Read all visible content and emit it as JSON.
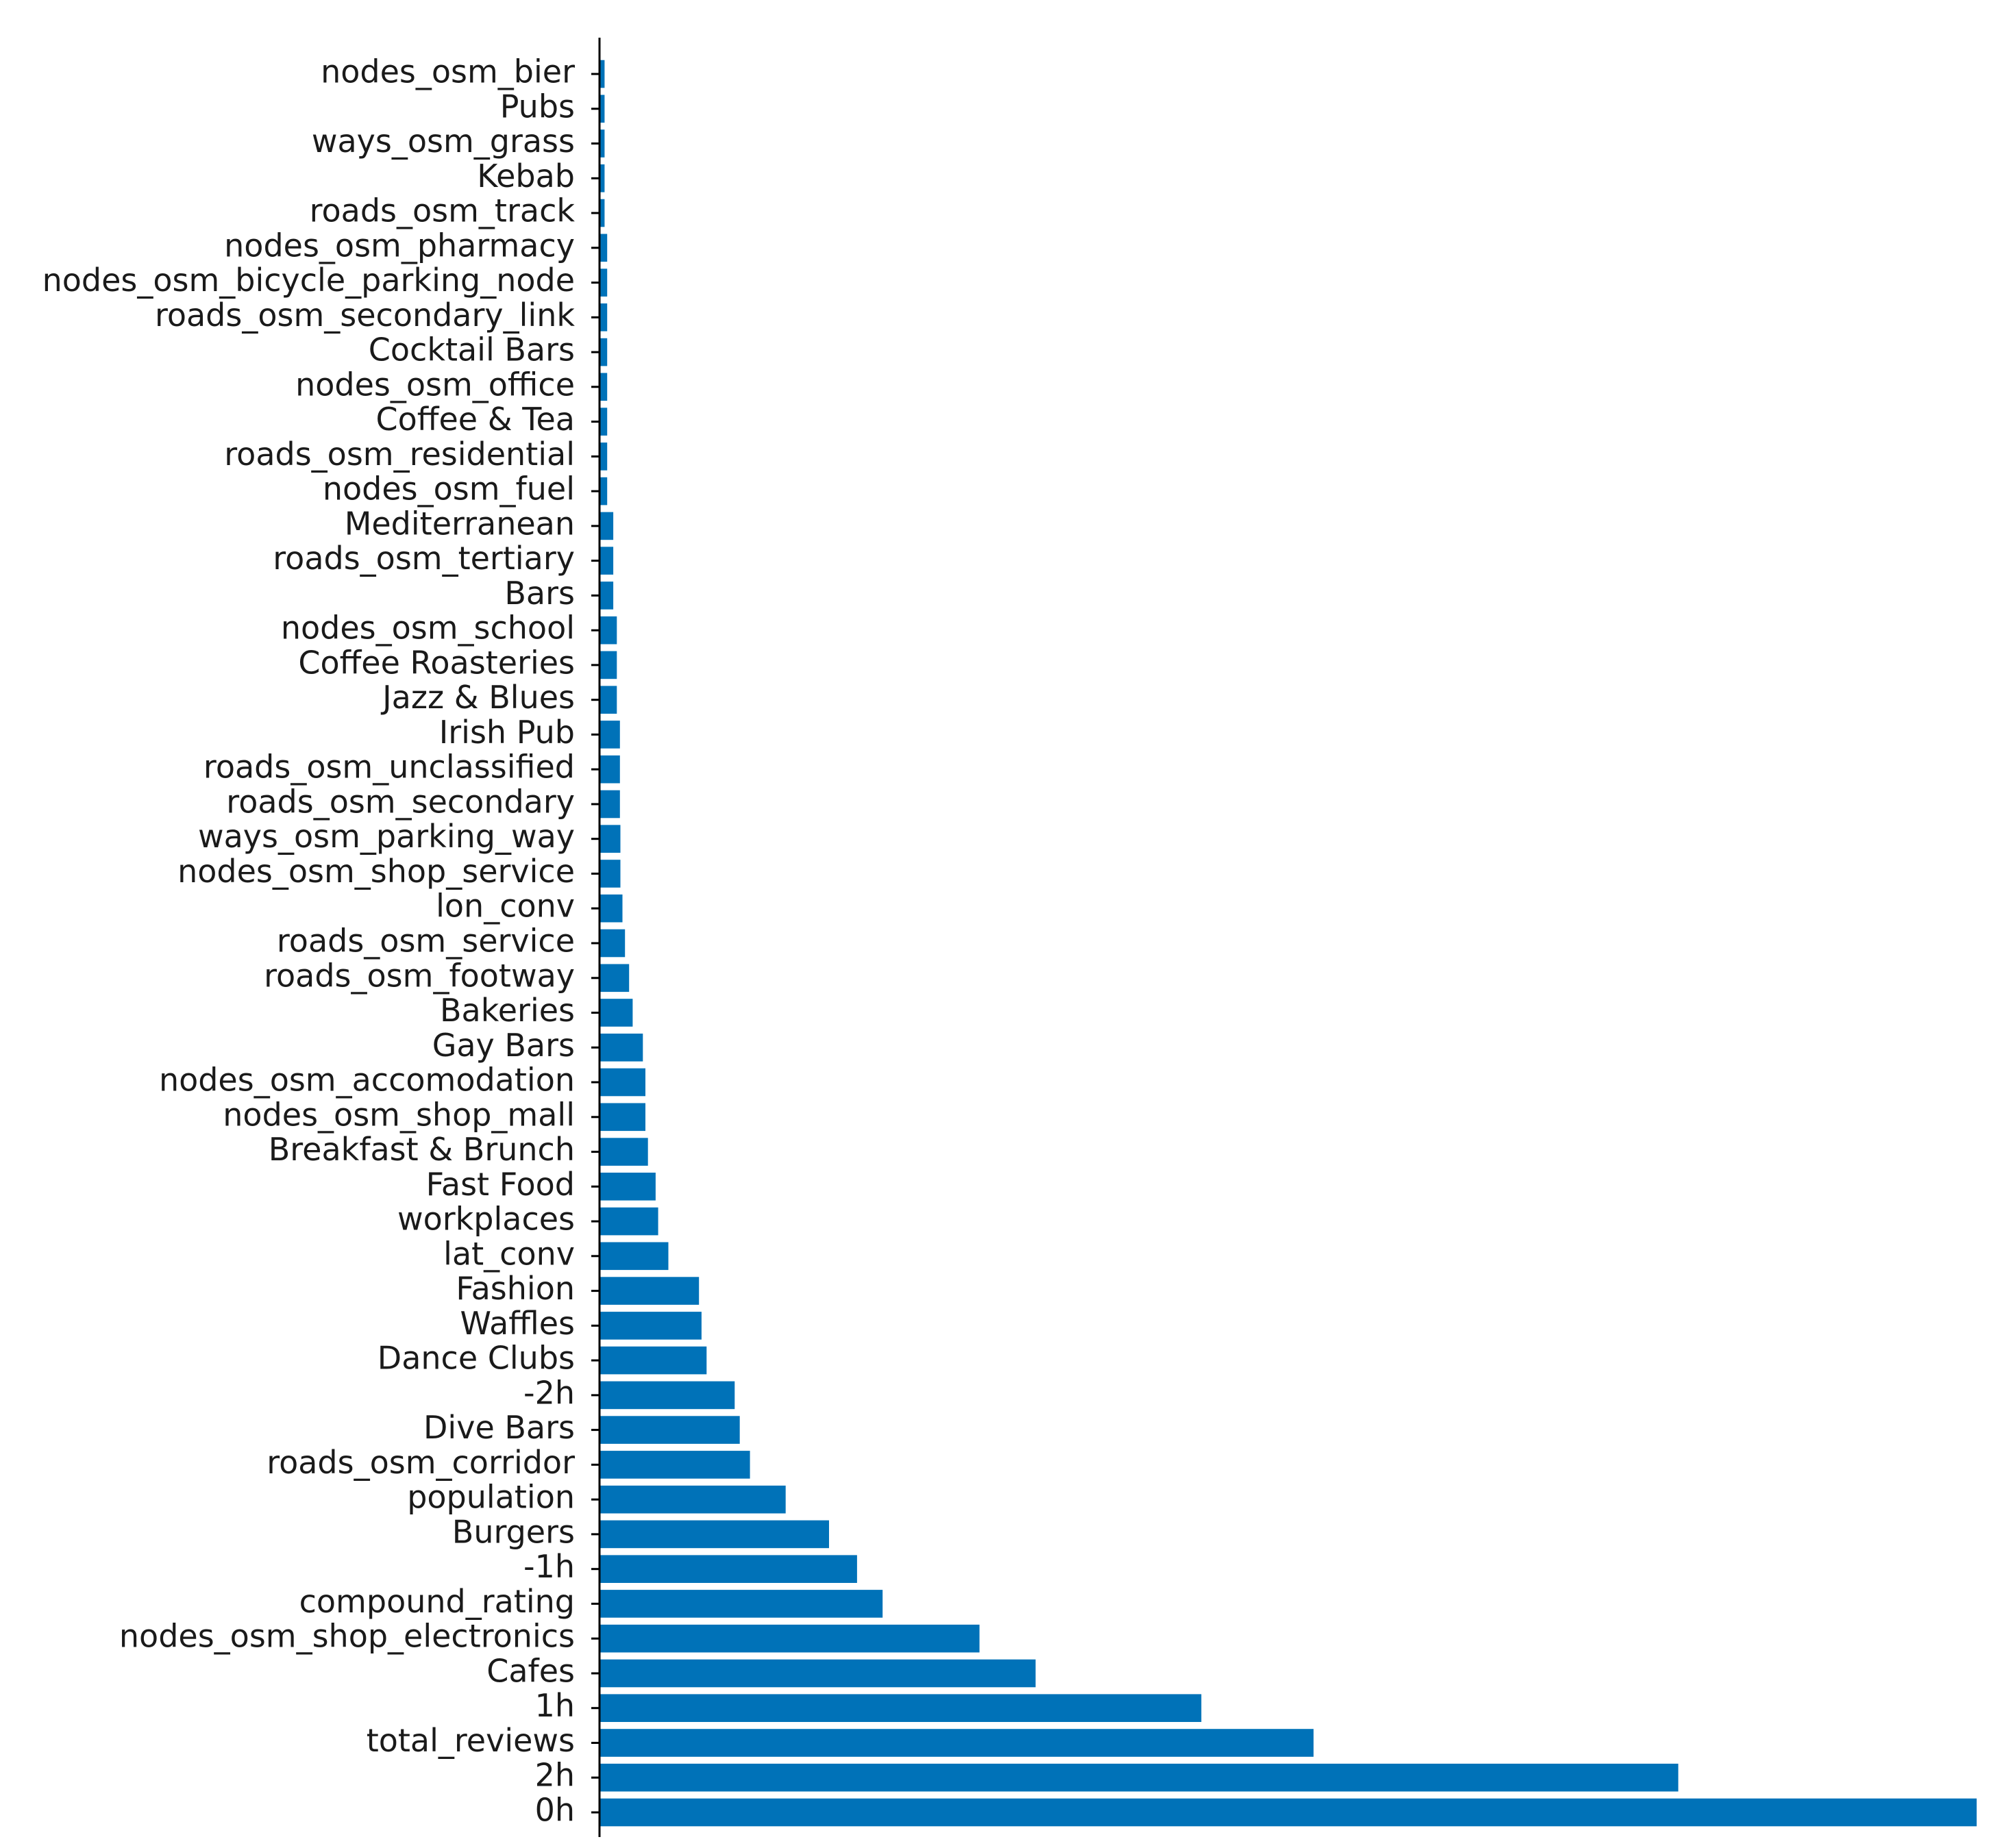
{
  "chart_data": {
    "type": "bar",
    "orientation": "horizontal",
    "title": "",
    "xlabel": "",
    "ylabel": "",
    "bar_color": "#0072b8",
    "xlim": [
      0,
      0.27
    ],
    "x_ticks_visible": false,
    "grid": false,
    "legend": "none",
    "categories": [
      "0h",
      "2h",
      "total_reviews",
      "1h",
      "Cafes",
      "nodes_osm_shop_electronics",
      "compound_rating",
      "-1h",
      "Burgers",
      "population",
      "roads_osm_corridor",
      "Dive Bars",
      "-2h",
      "Dance Clubs",
      "Waffles",
      "Fashion",
      "lat_conv",
      "workplaces",
      "Fast Food",
      "Breakfast & Brunch",
      "nodes_osm_shop_mall",
      "nodes_osm_accomodation",
      "Gay Bars",
      "Bakeries",
      "roads_osm_footway",
      "roads_osm_service",
      "lon_conv",
      "nodes_osm_shop_service",
      "ways_osm_parking_way",
      "roads_osm_secondary",
      "roads_osm_unclassified",
      "Irish Pub",
      "Jazz & Blues",
      "Coffee Roasteries",
      "nodes_osm_school",
      "Bars",
      "roads_osm_tertiary",
      "Mediterranean",
      "nodes_osm_fuel",
      "roads_osm_residential",
      "Coffee & Tea",
      "nodes_osm_office",
      "Cocktail Bars",
      "roads_osm_secondary_link",
      "nodes_osm_bicycle_parking_node",
      "nodes_osm_pharmacy",
      "roads_osm_track",
      "Kebab",
      "ways_osm_grass",
      "Pubs",
      "nodes_osm_bier"
    ],
    "values": [
      0.27,
      0.2115,
      0.14,
      0.118,
      0.0855,
      0.0745,
      0.0555,
      0.0505,
      0.045,
      0.0365,
      0.0295,
      0.0275,
      0.0265,
      0.021,
      0.02,
      0.0195,
      0.0135,
      0.0115,
      0.011,
      0.0095,
      0.009,
      0.009,
      0.0085,
      0.0065,
      0.0058,
      0.005,
      0.0045,
      0.0041,
      0.0041,
      0.004,
      0.004,
      0.004,
      0.0034,
      0.0034,
      0.0034,
      0.0027,
      0.0027,
      0.0027,
      0.0015,
      0.0015,
      0.0015,
      0.0015,
      0.0015,
      0.0015,
      0.0015,
      0.0015,
      0.001,
      0.001,
      0.001,
      0.001,
      0.001
    ]
  }
}
